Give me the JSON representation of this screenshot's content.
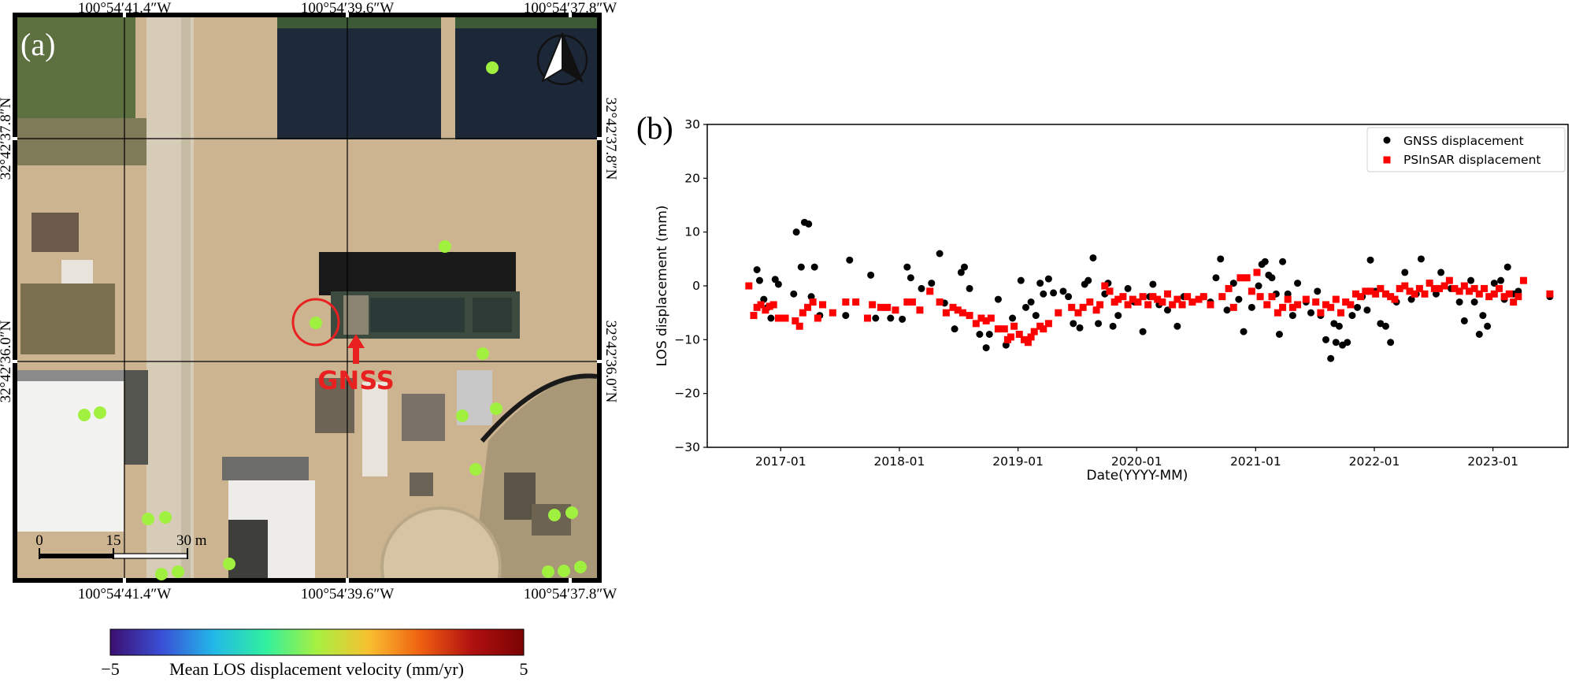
{
  "panel_a": {
    "label": "(a)",
    "top_ticks": [
      "100°54′41.4″W",
      "100°54′39.6″W",
      "100°54′37.8″W"
    ],
    "bottom_ticks": [
      "100°54′41.4″W",
      "100°54′39.6″W",
      "100°54′37.8″W"
    ],
    "left_ticks": [
      "32°42′37.8″N",
      "32°42′36.0″N"
    ],
    "right_ticks": [
      "32°42′37.8″N",
      "32°42′36.0″N"
    ],
    "gnss_label": "GNSS",
    "scale_bar": {
      "zero": "0",
      "mid": "15",
      "end": "30 m"
    },
    "north_arrow_icon": "north-arrow-icon",
    "point_color": "#a0f040",
    "gnss_ring_color": "#e82020"
  },
  "colorbar": {
    "min_label": "−5",
    "max_label": "5",
    "title": "Mean LOS displacement velocity (mm/yr)",
    "stops": [
      "#3b0f70",
      "#3a4fd6",
      "#22b8e8",
      "#30f0a0",
      "#a8f040",
      "#f8c030",
      "#f06010",
      "#b01010",
      "#7a0403"
    ]
  },
  "chart_data": {
    "type": "scatter",
    "panel_label": "(b)",
    "xlabel": "Date(YYYY-MM)",
    "ylabel": "LOS displacement (mm)",
    "ylim": [
      -30,
      30
    ],
    "xlim": [
      "2016-05-20",
      "2023-08-20"
    ],
    "yticks": [
      -30,
      -20,
      -10,
      0,
      10,
      20,
      30
    ],
    "xticks": [
      "2017-01",
      "2018-01",
      "2019-01",
      "2020-01",
      "2021-01",
      "2022-01",
      "2023-01"
    ],
    "grid": false,
    "legend_position": "top-right",
    "series": [
      {
        "name": "GNSS displacement",
        "marker": "circle",
        "color": "#000000",
        "points": [
          [
            "2016-10-20",
            3
          ],
          [
            "2016-10-28",
            1
          ],
          [
            "2016-11-10",
            -2.5
          ],
          [
            "2016-11-22",
            -4
          ],
          [
            "2016-12-02",
            -6
          ],
          [
            "2016-12-15",
            1.2
          ],
          [
            "2016-12-25",
            0.3
          ],
          [
            "2017-02-10",
            -1.5
          ],
          [
            "2017-02-18",
            10
          ],
          [
            "2017-03-05",
            3.5
          ],
          [
            "2017-03-15",
            11.8
          ],
          [
            "2017-03-28",
            11.5
          ],
          [
            "2017-04-05",
            -2
          ],
          [
            "2017-04-15",
            3.5
          ],
          [
            "2017-05-01",
            -5.5
          ],
          [
            "2017-07-20",
            -5.5
          ],
          [
            "2017-08-01",
            4.8
          ],
          [
            "2017-10-05",
            2
          ],
          [
            "2017-10-20",
            -6
          ],
          [
            "2017-12-05",
            -6
          ],
          [
            "2018-01-10",
            -6.2
          ],
          [
            "2018-01-25",
            3.5
          ],
          [
            "2018-02-05",
            1.5
          ],
          [
            "2018-03-10",
            -0.5
          ],
          [
            "2018-04-10",
            0.5
          ],
          [
            "2018-05-05",
            6
          ],
          [
            "2018-05-20",
            -3.2
          ],
          [
            "2018-06-20",
            -8
          ],
          [
            "2018-07-10",
            2.5
          ],
          [
            "2018-07-20",
            3.5
          ],
          [
            "2018-08-05",
            -0.5
          ],
          [
            "2018-09-05",
            -9
          ],
          [
            "2018-09-25",
            -11.5
          ],
          [
            "2018-10-05",
            -9
          ],
          [
            "2018-11-01",
            -2.5
          ],
          [
            "2018-11-25",
            -11
          ],
          [
            "2018-12-15",
            -6
          ],
          [
            "2019-01-10",
            1
          ],
          [
            "2019-01-25",
            -4
          ],
          [
            "2019-02-10",
            -3
          ],
          [
            "2019-02-25",
            -5.5
          ],
          [
            "2019-03-10",
            0.5
          ],
          [
            "2019-03-20",
            -1.5
          ],
          [
            "2019-04-05",
            1.3
          ],
          [
            "2019-04-20",
            -1.3
          ],
          [
            "2019-05-20",
            -1
          ],
          [
            "2019-06-05",
            -2
          ],
          [
            "2019-06-20",
            -7
          ],
          [
            "2019-07-10",
            -7.8
          ],
          [
            "2019-07-25",
            0.3
          ],
          [
            "2019-08-05",
            1
          ],
          [
            "2019-08-20",
            5.2
          ],
          [
            "2019-09-05",
            -7
          ],
          [
            "2019-09-25",
            -1.5
          ],
          [
            "2019-10-05",
            0.5
          ],
          [
            "2019-10-20",
            -7.5
          ],
          [
            "2019-11-05",
            -5.5
          ],
          [
            "2019-12-05",
            -0.5
          ],
          [
            "2019-12-25",
            -3
          ],
          [
            "2020-01-20",
            -8.5
          ],
          [
            "2020-02-10",
            -2
          ],
          [
            "2020-02-20",
            0.3
          ],
          [
            "2020-03-10",
            -3.5
          ],
          [
            "2020-04-05",
            -4.5
          ],
          [
            "2020-05-05",
            -7.5
          ],
          [
            "2020-05-25",
            -2
          ],
          [
            "2020-06-20",
            -3
          ],
          [
            "2020-07-25",
            -2
          ],
          [
            "2020-08-15",
            -3
          ],
          [
            "2020-09-01",
            1.5
          ],
          [
            "2020-09-15",
            5
          ],
          [
            "2020-10-05",
            -4.5
          ],
          [
            "2020-10-25",
            0.5
          ],
          [
            "2020-11-10",
            -2.5
          ],
          [
            "2020-11-25",
            -8.5
          ],
          [
            "2020-12-20",
            -4
          ],
          [
            "2021-01-10",
            0
          ],
          [
            "2021-01-20",
            4
          ],
          [
            "2021-01-30",
            4.5
          ],
          [
            "2021-02-10",
            2
          ],
          [
            "2021-02-20",
            1.5
          ],
          [
            "2021-03-05",
            -1.5
          ],
          [
            "2021-03-15",
            -9
          ],
          [
            "2021-03-25",
            4.5
          ],
          [
            "2021-04-10",
            -1.5
          ],
          [
            "2021-04-25",
            -5.5
          ],
          [
            "2021-05-10",
            0.5
          ],
          [
            "2021-06-05",
            -3
          ],
          [
            "2021-06-20",
            -5
          ],
          [
            "2021-07-10",
            -1
          ],
          [
            "2021-07-20",
            -5.5
          ],
          [
            "2021-08-05",
            -10
          ],
          [
            "2021-08-20",
            -13.5
          ],
          [
            "2021-08-30",
            -7
          ],
          [
            "2021-09-05",
            -10.5
          ],
          [
            "2021-09-15",
            -7.5
          ],
          [
            "2021-09-25",
            -11
          ],
          [
            "2021-10-10",
            -10.5
          ],
          [
            "2021-10-25",
            -5.5
          ],
          [
            "2021-11-10",
            -4
          ],
          [
            "2021-11-25",
            -2
          ],
          [
            "2021-12-10",
            -4.5
          ],
          [
            "2021-12-20",
            4.8
          ],
          [
            "2022-01-05",
            -1
          ],
          [
            "2022-01-20",
            -7
          ],
          [
            "2022-02-05",
            -7.5
          ],
          [
            "2022-02-20",
            -10.5
          ],
          [
            "2022-03-10",
            -3
          ],
          [
            "2022-04-05",
            2.5
          ],
          [
            "2022-04-25",
            -2.5
          ],
          [
            "2022-05-10",
            -1.5
          ],
          [
            "2022-05-25",
            5
          ],
          [
            "2022-06-20",
            0.5
          ],
          [
            "2022-07-10",
            -1.5
          ],
          [
            "2022-07-25",
            2.5
          ],
          [
            "2022-08-25",
            -0.5
          ],
          [
            "2022-09-20",
            -3
          ],
          [
            "2022-10-05",
            -6.5
          ],
          [
            "2022-10-25",
            1
          ],
          [
            "2022-11-05",
            -3
          ],
          [
            "2022-11-20",
            -9
          ],
          [
            "2022-12-01",
            -5.5
          ],
          [
            "2022-12-15",
            -7.5
          ],
          [
            "2023-01-05",
            0.5
          ],
          [
            "2023-01-25",
            1
          ],
          [
            "2023-02-05",
            -2.5
          ],
          [
            "2023-02-15",
            3.5
          ],
          [
            "2023-03-05",
            -1.5
          ],
          [
            "2023-03-20",
            -1
          ],
          [
            "2023-06-25",
            -2
          ]
        ]
      },
      {
        "name": "PSInSAR displacement",
        "marker": "square",
        "color": "#ff0000",
        "points": [
          [
            "2016-09-25",
            0
          ],
          [
            "2016-10-10",
            -5.5
          ],
          [
            "2016-10-20",
            -4
          ],
          [
            "2016-11-01",
            -3.5
          ],
          [
            "2016-11-15",
            -4.5
          ],
          [
            "2016-11-28",
            -3.8
          ],
          [
            "2016-12-10",
            -3.5
          ],
          [
            "2016-12-25",
            -6
          ],
          [
            "2017-01-15",
            -6
          ],
          [
            "2017-02-15",
            -6.5
          ],
          [
            "2017-02-28",
            -7.5
          ],
          [
            "2017-03-10",
            -5
          ],
          [
            "2017-03-25",
            -4
          ],
          [
            "2017-04-10",
            -3
          ],
          [
            "2017-04-25",
            -6
          ],
          [
            "2017-05-10",
            -3.5
          ],
          [
            "2017-06-10",
            -5
          ],
          [
            "2017-07-20",
            -3
          ],
          [
            "2017-08-20",
            -3
          ],
          [
            "2017-09-25",
            -6
          ],
          [
            "2017-10-10",
            -3.5
          ],
          [
            "2017-11-05",
            -4
          ],
          [
            "2017-11-25",
            -4
          ],
          [
            "2017-12-20",
            -4.5
          ],
          [
            "2018-01-25",
            -3
          ],
          [
            "2018-02-10",
            -3
          ],
          [
            "2018-03-05",
            -4.5
          ],
          [
            "2018-04-05",
            -1
          ],
          [
            "2018-05-05",
            -3
          ],
          [
            "2018-05-25",
            -5
          ],
          [
            "2018-06-15",
            -4
          ],
          [
            "2018-06-30",
            -4.5
          ],
          [
            "2018-07-15",
            -5
          ],
          [
            "2018-08-05",
            -5.5
          ],
          [
            "2018-08-25",
            -7
          ],
          [
            "2018-09-10",
            -6
          ],
          [
            "2018-09-25",
            -6.5
          ],
          [
            "2018-10-10",
            -6
          ],
          [
            "2018-11-01",
            -8
          ],
          [
            "2018-11-20",
            -8
          ],
          [
            "2018-11-30",
            -10
          ],
          [
            "2018-12-10",
            -9.5
          ],
          [
            "2018-12-20",
            -7.5
          ],
          [
            "2019-01-05",
            -9
          ],
          [
            "2019-01-20",
            -10
          ],
          [
            "2019-02-01",
            -10.5
          ],
          [
            "2019-02-10",
            -9.5
          ],
          [
            "2019-02-20",
            -8.5
          ],
          [
            "2019-03-10",
            -7.5
          ],
          [
            "2019-03-20",
            -8
          ],
          [
            "2019-04-05",
            -7
          ],
          [
            "2019-05-05",
            -5
          ],
          [
            "2019-06-15",
            -4
          ],
          [
            "2019-07-05",
            -5
          ],
          [
            "2019-07-20",
            -4
          ],
          [
            "2019-08-10",
            -3
          ],
          [
            "2019-08-30",
            -4.5
          ],
          [
            "2019-09-10",
            -3.5
          ],
          [
            "2019-09-25",
            0
          ],
          [
            "2019-10-10",
            -1
          ],
          [
            "2019-10-25",
            -3
          ],
          [
            "2019-11-05",
            -2.5
          ],
          [
            "2019-11-20",
            -2
          ],
          [
            "2019-12-05",
            -3.5
          ],
          [
            "2019-12-20",
            -2.5
          ],
          [
            "2020-01-05",
            -3
          ],
          [
            "2020-01-20",
            -2
          ],
          [
            "2020-02-05",
            -3.5
          ],
          [
            "2020-02-20",
            -2
          ],
          [
            "2020-03-05",
            -2.5
          ],
          [
            "2020-03-20",
            -3
          ],
          [
            "2020-04-05",
            -1.5
          ],
          [
            "2020-04-20",
            -3.5
          ],
          [
            "2020-05-05",
            -2.5
          ],
          [
            "2020-05-20",
            -3.5
          ],
          [
            "2020-06-05",
            -2
          ],
          [
            "2020-06-20",
            -3
          ],
          [
            "2020-07-10",
            -2.5
          ],
          [
            "2020-07-25",
            -2
          ],
          [
            "2020-08-15",
            -3.5
          ],
          [
            "2020-09-20",
            -2
          ],
          [
            "2020-10-10",
            -0.5
          ],
          [
            "2020-10-25",
            -4
          ],
          [
            "2020-11-15",
            1.5
          ],
          [
            "2020-12-05",
            1.5
          ],
          [
            "2020-12-20",
            -1
          ],
          [
            "2021-01-05",
            2.5
          ],
          [
            "2021-01-15",
            -2
          ],
          [
            "2021-02-05",
            -3.5
          ],
          [
            "2021-02-20",
            -2
          ],
          [
            "2021-03-10",
            -5
          ],
          [
            "2021-03-25",
            -4
          ],
          [
            "2021-04-10",
            -2.5
          ],
          [
            "2021-04-25",
            -4
          ],
          [
            "2021-05-10",
            -3.5
          ],
          [
            "2021-06-05",
            -2.5
          ],
          [
            "2021-07-05",
            -3
          ],
          [
            "2021-07-20",
            -5
          ],
          [
            "2021-08-05",
            -3.5
          ],
          [
            "2021-08-20",
            -4
          ],
          [
            "2021-09-05",
            -2.5
          ],
          [
            "2021-09-20",
            -5
          ],
          [
            "2021-10-05",
            -3
          ],
          [
            "2021-10-20",
            -3.5
          ],
          [
            "2021-11-05",
            -1.5
          ],
          [
            "2021-11-20",
            -2
          ],
          [
            "2021-12-05",
            -1
          ],
          [
            "2021-12-20",
            -1
          ],
          [
            "2022-01-05",
            -1.5
          ],
          [
            "2022-01-20",
            -0.5
          ],
          [
            "2022-02-05",
            -1.5
          ],
          [
            "2022-02-20",
            -2
          ],
          [
            "2022-03-05",
            -2.5
          ],
          [
            "2022-03-20",
            -0.5
          ],
          [
            "2022-04-05",
            0
          ],
          [
            "2022-04-20",
            -1
          ],
          [
            "2022-05-05",
            -1.5
          ],
          [
            "2022-05-20",
            -0.5
          ],
          [
            "2022-06-05",
            -1.5
          ],
          [
            "2022-06-20",
            0.5
          ],
          [
            "2022-07-05",
            -0.5
          ],
          [
            "2022-07-20",
            -0.5
          ],
          [
            "2022-08-05",
            0
          ],
          [
            "2022-08-20",
            1
          ],
          [
            "2022-09-05",
            -0.5
          ],
          [
            "2022-09-20",
            -1
          ],
          [
            "2022-10-05",
            0
          ],
          [
            "2022-10-20",
            -1
          ],
          [
            "2022-11-05",
            -0.5
          ],
          [
            "2022-11-20",
            -1.5
          ],
          [
            "2022-12-05",
            -0.5
          ],
          [
            "2022-12-20",
            -2
          ],
          [
            "2023-01-05",
            -1.5
          ],
          [
            "2023-01-20",
            -0.5
          ],
          [
            "2023-02-05",
            -2
          ],
          [
            "2023-02-20",
            -1.5
          ],
          [
            "2023-03-05",
            -3
          ],
          [
            "2023-03-20",
            -2
          ],
          [
            "2023-04-05",
            1
          ],
          [
            "2023-06-25",
            -1.5
          ]
        ]
      }
    ]
  }
}
